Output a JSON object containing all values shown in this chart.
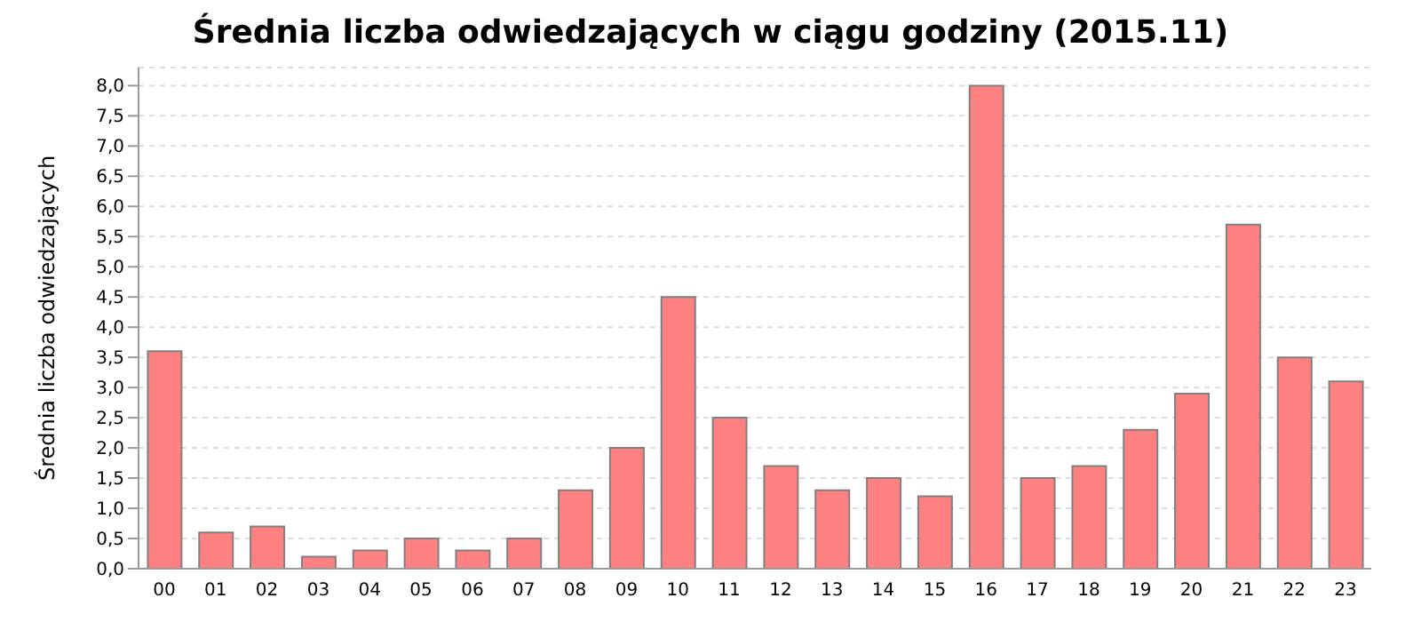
{
  "chart_data": {
    "type": "bar",
    "title": "Średnia liczba odwiedzających w ciągu godziny (2015.11)",
    "ylabel": "Średnia liczba odwiedzających",
    "categories": [
      "00",
      "01",
      "02",
      "03",
      "04",
      "05",
      "06",
      "07",
      "08",
      "09",
      "10",
      "11",
      "12",
      "13",
      "14",
      "15",
      "16",
      "17",
      "18",
      "19",
      "20",
      "21",
      "22",
      "23"
    ],
    "values": [
      3.6,
      0.6,
      0.7,
      0.2,
      0.3,
      0.5,
      0.3,
      0.5,
      1.3,
      2.0,
      4.5,
      2.5,
      1.7,
      1.3,
      1.5,
      1.2,
      8.0,
      1.5,
      1.7,
      2.3,
      2.9,
      5.7,
      3.5,
      3.1
    ],
    "color": "#ff8080",
    "ylim": [
      0,
      8.3
    ],
    "yticks": [
      {
        "value": 0,
        "label": "0,0"
      },
      {
        "value": 0.5,
        "label": "0,5"
      },
      {
        "value": 1,
        "label": "1,0"
      },
      {
        "value": 1.5,
        "label": "1,5"
      },
      {
        "value": 2,
        "label": "2,0"
      },
      {
        "value": 2.5,
        "label": "2,5"
      },
      {
        "value": 3,
        "label": "3,0"
      },
      {
        "value": 3.5,
        "label": "3,5"
      },
      {
        "value": 4,
        "label": "4,0"
      },
      {
        "value": 4.5,
        "label": "4,5"
      },
      {
        "value": 5,
        "label": "5,0"
      },
      {
        "value": 5.5,
        "label": "5,5"
      },
      {
        "value": 6,
        "label": "6,0"
      },
      {
        "value": 6.5,
        "label": "6,5"
      },
      {
        "value": 7,
        "label": "7,0"
      },
      {
        "value": 7.5,
        "label": "7,5"
      },
      {
        "value": 8,
        "label": "8,0"
      }
    ],
    "grid": "y"
  }
}
